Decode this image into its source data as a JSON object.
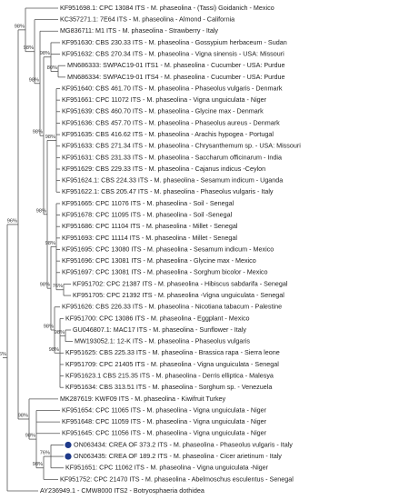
{
  "tree": {
    "leaves": [
      "KF951698.1: CPC 13084 ITS - M. phaseolina - (Tassi) Goidanich - Mexico",
      "KC357271.1: 7E64 ITS - M. phaseolina - Almond - California",
      "MG836711: M1 ITS - M. phaseolina - Strawberry - Italy",
      "KF951630: CBS 230.33 ITS - M. phaseolina - Gossypium herbaceum - Sudan",
      "KF951632: CBS 270.34 ITS - M. phaseolina - Vigna sinensis - USA: Missouri",
      "MN686333: SWPAC19-01 ITS1 - M. phaseolina - Cucumber - USA: Purdue",
      "MN686334: SWPAC19-01 ITS4 - M. phaseolina - Cucumber - USA: Purdue",
      "KF951640: CBS 461.70 ITS - M. phaseolina - Phaseolus vulgaris - Denmark",
      "KF951661: CPC 11072 ITS - M. phaseolina - Vigna unguiculata - Niger",
      "KF951639: CBS 460.70 ITS - M. phaseolina - Glycine max - Denmark",
      "KF951636: CBS 457.70 ITS - M. phaseolina - Phaseolus aureus - Denmark",
      "KF951635: CBS 416.62 ITS - M. phaseolina - Arachis hypogea - Portugal",
      "KF951633: CBS 271.34 ITS - M. phaseolina - Chrysanthemum sp. - USA: Missouri",
      "KF951631: CBS 231.33 ITS - M. phaseolina - Saccharum officinarum - India",
      "KF951629: CBS 229.33 ITS - M. phaseolina - Cajanus indicus -Ceylon",
      "KF951624.1: CBS 224.33 ITS - M. phaseolina - Sesamum indicum - Uganda",
      "KF951622.1: CBS 205.47 ITS - M. phaseolina - Phaseolus vulgaris - Italy",
      "KF951665: CPC 11076 ITS - M. phaseolina - Soil - Senegal",
      "KF951678: CPC 11095 ITS - M. phaseolina - Soil -Senegal",
      "KF951686: CPC 11104 ITS - M. phaseolina - Millet - Senegal",
      "KF951693: CPC 11114 ITS - M. phaseolina - Millet - Senegal",
      "KF951695: CPC 13080 ITS - M. phaseolina - Sesamum indicum - Mexico",
      "KF951696: CPC 13081 ITS - M. phaseolina - Glycine max - Mexico",
      "KF951697: CPC 13081 ITS - M. phaseolina - Sorghum bicolor - Mexico",
      "KF951702: CPC 21387 ITS - M. phaseolina - Hibiscus sabdarifa - Senegal",
      "KF951705: CPC 21392 ITS - M. phaseolina -Vigna unguiculata - Senegal",
      "KF951626: CBS 226.33 ITS - M. phaseolina - Nicotiana tabacum - Palestine",
      "KF951700: CPC 13086 ITS - M. phaseolina - Eggplant - Mexico",
      "GU046807.1: MAC17 ITS - M. phaseolina - Sunflower - Italy",
      "MW193052.1: 12-K ITS - M. phaseolina - Phaseolus vulgaris",
      "KF951625: CBS 225.33 ITS - M. phaseolina - Brassica rapa - Sierra leone",
      "KF951709: CPC 21405 ITS - M. phaseolina - Vigna unguiculata - Senegal",
      "KF951623.1 CBS 215.35 ITS - M. phaseolina - Derris elliptica - Malesya",
      "KF951634: CBS 313.51 ITS - M. phaseolina - Sorghum sp. - Venezuela",
      "MK287619: KWF09 ITS - M. phaseolina - Kiwifruit Turkey",
      "KF951654: CPC 11065 ITS - M. phaseolina - Vigna unguiculata - Niger",
      "KF951648: CPC 11059 ITS - M. phaseolina - Vigna unguiculata - Niger",
      "KF951645: CPC 11056 ITS - M. phaseolina - Vigna unguiculata - Niger",
      "ON063434: CREA OF 373.2 ITS - M. phaseolina - Phaseolus vulgaris - Italy",
      "ON063435: CREA OF 189.2 ITS - M. phaseolina - Cicer arietinum - Italy",
      "KF951651: CPC 11062 ITS - M. phaseolina - Vigna unguiculata -Niger",
      "KF951752: CPC 21470 ITS - M. phaseolina - Abelmoschus esculentus - Senegal",
      "AY236949.1 - CMW8000 ITS2 - Botryosphaeria dothidea"
    ],
    "supports": [
      "96%",
      "98%",
      "98%",
      "98%",
      "98%",
      "98%",
      "80%",
      "98%",
      "98%",
      "98%",
      "98%",
      "76%",
      "98%",
      "98%",
      "98%",
      "98%",
      "98%",
      "98%",
      "76%",
      "96%"
    ]
  }
}
